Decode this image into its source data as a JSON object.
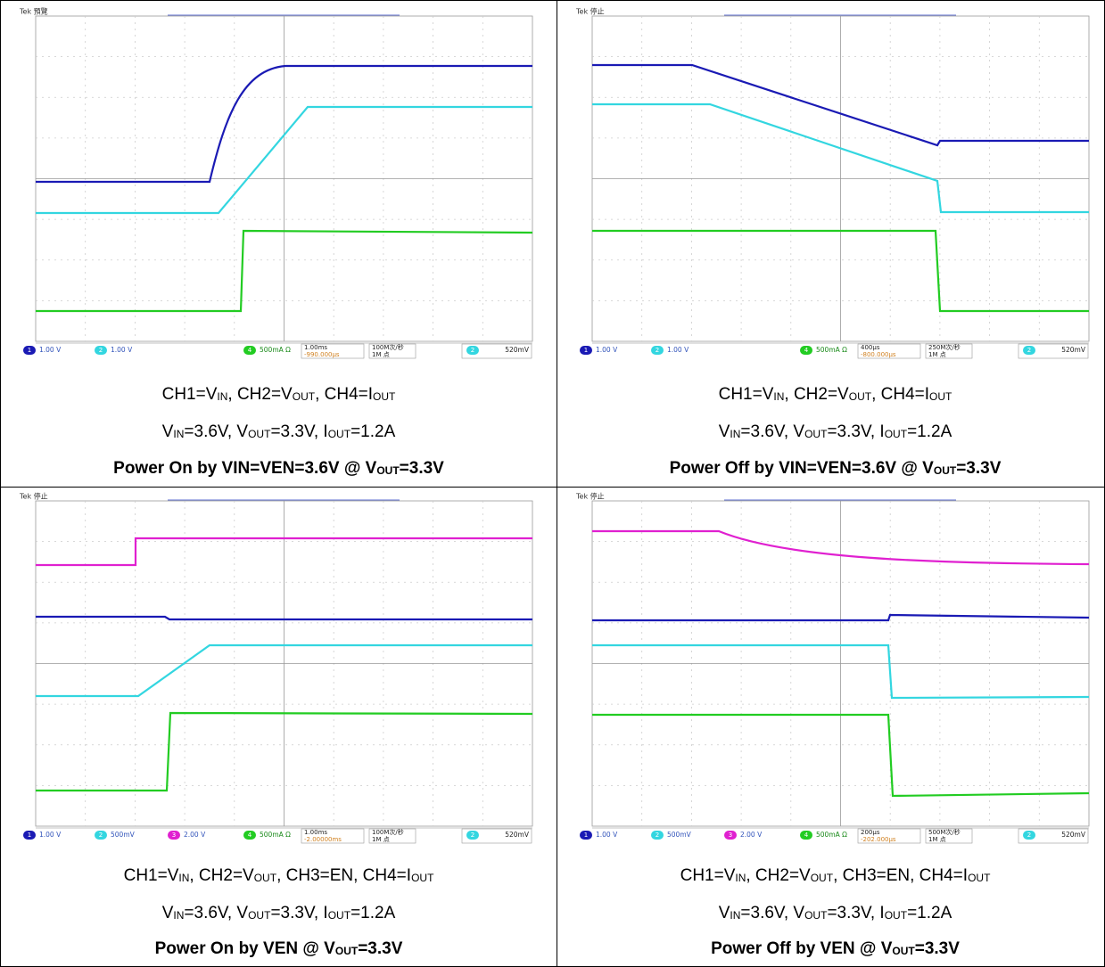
{
  "panels": [
    {
      "scope": {
        "header": "Tek 預覽",
        "channels": [
          {
            "n": "1",
            "scale": "1.00 V"
          },
          {
            "n": "2",
            "scale": "1.00 V"
          },
          {
            "n": "4",
            "scale": "500mA Ω"
          }
        ],
        "timebase": "1.00ms",
        "delay": "-990.000µs",
        "rate": "100M次/秒",
        "points": "1M 点",
        "trigger": {
          "n": "2",
          "level": "520mV"
        }
      },
      "caption": [
        [
          "CH1=V",
          {
            "sub": "IN"
          },
          ", CH2=V",
          {
            "sub": "OUT"
          },
          ", CH4=I",
          {
            "sub": "OUT"
          }
        ],
        [
          "V",
          {
            "sub": "IN"
          },
          "=3.6V, V",
          {
            "sub": "OUT"
          },
          "=3.3V, I",
          {
            "sub": "OUT"
          },
          "=1.2A"
        ],
        [
          "Power On by VIN=VEN=3.6V @ V",
          {
            "sub": "OUT"
          },
          "=3.3V"
        ]
      ]
    },
    {
      "scope": {
        "header": "Tek 停止",
        "channels": [
          {
            "n": "1",
            "scale": "1.00 V"
          },
          {
            "n": "2",
            "scale": "1.00 V"
          },
          {
            "n": "4",
            "scale": "500mA Ω"
          }
        ],
        "timebase": "400µs",
        "delay": "-800.000µs",
        "rate": "250M次/秒",
        "points": "1M 点",
        "trigger": {
          "n": "2",
          "level": "520mV"
        }
      },
      "caption": [
        [
          "CH1=V",
          {
            "sub": "IN"
          },
          ", CH2=V",
          {
            "sub": "OUT"
          },
          ", CH4=I",
          {
            "sub": "OUT"
          }
        ],
        [
          "V",
          {
            "sub": "IN"
          },
          "=3.6V, V",
          {
            "sub": "OUT"
          },
          "=3.3V, I",
          {
            "sub": "OUT"
          },
          "=1.2A"
        ],
        [
          "Power Off by VIN=VEN=3.6V @ V",
          {
            "sub": "OUT"
          },
          "=3.3V"
        ]
      ]
    },
    {
      "scope": {
        "header": "Tek 停止",
        "channels": [
          {
            "n": "1",
            "scale": "1.00 V"
          },
          {
            "n": "2",
            "scale": "500mV"
          },
          {
            "n": "3",
            "scale": "2.00 V"
          },
          {
            "n": "4",
            "scale": "500mA Ω"
          }
        ],
        "timebase": "1.00ms",
        "delay": "-2.00000ms",
        "rate": "100M次/秒",
        "points": "1M 点",
        "trigger": {
          "n": "2",
          "level": "520mV"
        }
      },
      "caption": [
        [
          "CH1=V",
          {
            "sub": "IN"
          },
          ", CH2=V",
          {
            "sub": "OUT"
          },
          ", CH3=EN, CH4=I",
          {
            "sub": "OUT"
          }
        ],
        [
          "V",
          {
            "sub": "IN"
          },
          "=3.6V, V",
          {
            "sub": "OUT"
          },
          "=3.3V, I",
          {
            "sub": "OUT"
          },
          "=1.2A"
        ],
        [
          "Power On by VEN @ V",
          {
            "sub": "OUT"
          },
          "=3.3V"
        ]
      ]
    },
    {
      "scope": {
        "header": "Tek 停止",
        "channels": [
          {
            "n": "1",
            "scale": "1.00 V"
          },
          {
            "n": "2",
            "scale": "500mV"
          },
          {
            "n": "3",
            "scale": "2.00 V"
          },
          {
            "n": "4",
            "scale": "500mA Ω"
          }
        ],
        "timebase": "200µs",
        "delay": "-202.000µs",
        "rate": "500M次/秒",
        "points": "1M 点",
        "trigger": {
          "n": "2",
          "level": "520mV"
        }
      },
      "caption": [
        [
          "CH1=V",
          {
            "sub": "IN"
          },
          ", CH2=V",
          {
            "sub": "OUT"
          },
          ", CH3=EN, CH4=I",
          {
            "sub": "OUT"
          }
        ],
        [
          "V",
          {
            "sub": "IN"
          },
          "=3.6V, V",
          {
            "sub": "OUT"
          },
          "=3.3V, I",
          {
            "sub": "OUT"
          },
          "=1.2A"
        ],
        [
          "Power Off by VEN @ V",
          {
            "sub": "OUT"
          },
          "=3.3V"
        ]
      ]
    }
  ]
}
